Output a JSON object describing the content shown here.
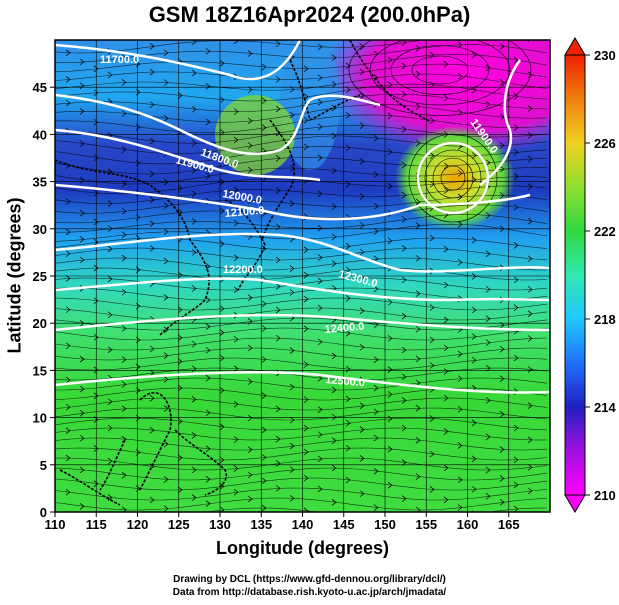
{
  "title": "GSM 18Z16Apr2024 (200.0hPa)",
  "map": {
    "xlabel": "Longitude (degrees)",
    "ylabel": "Latitude  (degrees)",
    "xlim": [
      110,
      170
    ],
    "ylim": [
      0,
      50
    ],
    "x_ticks": [
      "110",
      "115",
      "120",
      "125",
      "130",
      "135",
      "140",
      "145",
      "150",
      "155",
      "160",
      "165"
    ],
    "y_ticks": [
      "0",
      "5",
      "10",
      "15",
      "20",
      "25",
      "30",
      "35",
      "40",
      "45"
    ],
    "colorbar": {
      "ticks": [
        "230",
        "226",
        "222",
        "218",
        "214",
        "210"
      ],
      "range": [
        210,
        230
      ],
      "colors": [
        "#ff00ff",
        "#3020c8",
        "#20a0ff",
        "#30e8c0",
        "#30d830",
        "#c8e030",
        "#f0a000",
        "#f02000"
      ]
    },
    "contours": [
      {
        "label": "11700.0"
      },
      {
        "label": "11800.0"
      },
      {
        "label": "11900.0"
      },
      {
        "label": "11900.0"
      },
      {
        "label": "12000.0"
      },
      {
        "label": "12100.0"
      },
      {
        "label": "12200.0"
      },
      {
        "label": "12300.0"
      },
      {
        "label": "12400.0"
      },
      {
        "label": "12500.0"
      }
    ]
  },
  "footer": {
    "credit_line1": "Drawing by DCL (https://www.gfd-dennou.org/library/dcl/)",
    "credit_line2": "Data from http://database.rish.kyoto-u.ac.jp/arch/jmadata/"
  }
}
